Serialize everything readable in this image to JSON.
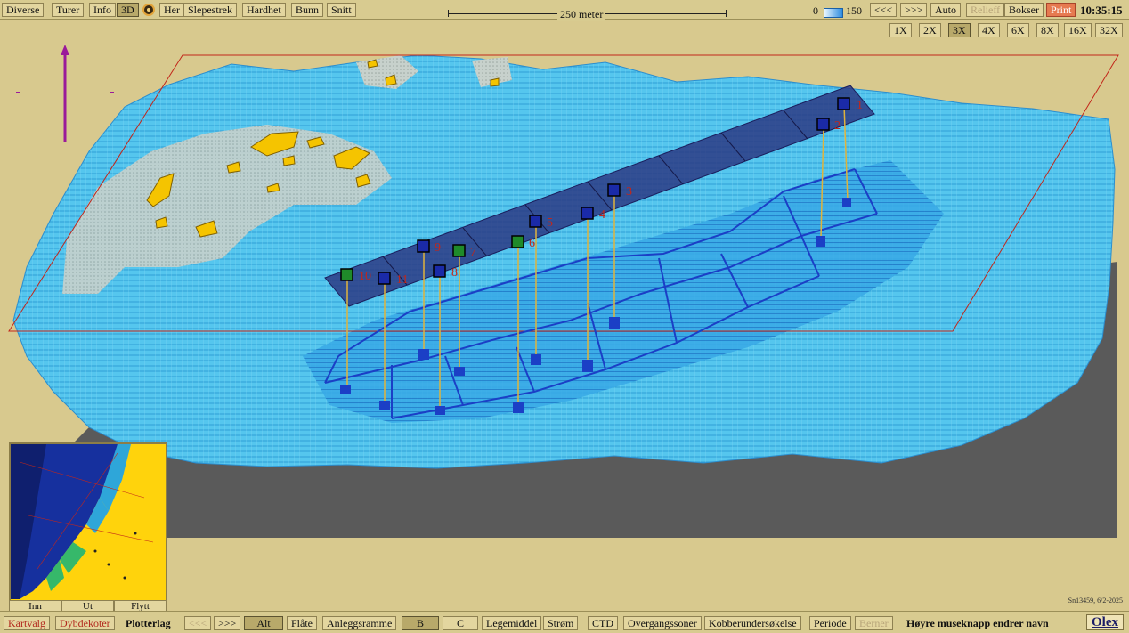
{
  "toolbar": {
    "left_buttons": [
      "Diverse",
      "Turer",
      "Info",
      "3D",
      "Her",
      "Slepestrek",
      "Hardhet",
      "Bunn",
      "Snitt"
    ],
    "scale_label": "250 meter",
    "depth_min": "0",
    "depth_max": "150",
    "right_buttons": [
      "<<<",
      ">>>",
      "Auto",
      "Relieff",
      "Bokser",
      "Print"
    ],
    "clock": "10:35:15",
    "zoom_levels": [
      "1X",
      "2X",
      "3X",
      "4X",
      "6X",
      "8X",
      "16X",
      "32X"
    ],
    "active_zoom": "3X"
  },
  "markers": [
    "1",
    "2",
    "3",
    "4",
    "5",
    "6",
    "7",
    "8",
    "9",
    "10",
    "11"
  ],
  "minimap": {
    "buttons": [
      "Inn",
      "Ut",
      "Flytt"
    ]
  },
  "serial": "Sn13459, 6/2-2025",
  "bottom": {
    "buttons": [
      "Kartvalg",
      "Dybdekoter",
      "Plotterlag",
      "<<<",
      ">>>",
      "Alt",
      "Flåte",
      "Anleggsramme",
      "B",
      "C",
      "Legemiddel",
      "Strøm",
      "CTD",
      "Overgangssoner",
      "Kobberundersøkelse",
      "Periode",
      "Berner"
    ],
    "hint": "Høyre museknapp endrer navn",
    "brand": "Olex"
  },
  "colors": {
    "sand": "#d8c98e",
    "sea": "#4fc3ea",
    "deep": "#1b4fd1",
    "box_fill": "#2b3480",
    "land": "#f5c400",
    "shadow": "#5a5a5a"
  }
}
